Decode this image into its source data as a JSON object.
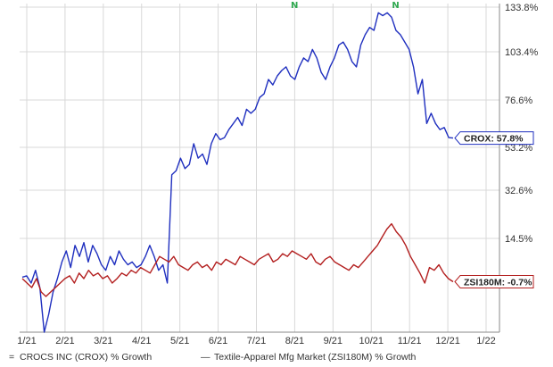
{
  "chart_data": {
    "type": "line",
    "x_ticks": [
      "1/21",
      "2/21",
      "3/21",
      "4/21",
      "5/21",
      "6/21",
      "7/21",
      "8/21",
      "9/21",
      "10/21",
      "11/21",
      "12/21",
      "1/22"
    ],
    "y_ticks": [
      "133.8%",
      "103.4%",
      "76.6%",
      "53.2%",
      "32.6%",
      "14.5%"
    ],
    "grid": true,
    "markers": [
      "N",
      "N"
    ],
    "series": [
      {
        "name": "CROCS INC (CROX) % Growth",
        "color": "#1f2fbf",
        "callout": "CROX: 57.8%",
        "legend_symbol": "=",
        "values": [
          0.5,
          1,
          -1,
          3,
          -2,
          -12,
          -8,
          -3,
          0,
          6,
          10,
          4,
          12,
          8,
          13,
          6,
          12,
          9,
          5,
          3,
          8,
          5,
          10,
          7,
          5,
          6,
          4,
          5,
          8,
          12,
          8,
          3,
          5,
          -1,
          40,
          42,
          48,
          43,
          45,
          55,
          48,
          50,
          45,
          55,
          60,
          57,
          58,
          62,
          65,
          68,
          64,
          72,
          70,
          72,
          78,
          80,
          88,
          85,
          90,
          93,
          95,
          90,
          88,
          95,
          100,
          98,
          105,
          100,
          92,
          88,
          95,
          100,
          108,
          110,
          105,
          98,
          95,
          108,
          115,
          120,
          118,
          130,
          128,
          130,
          127,
          118,
          115,
          110,
          105,
          95,
          80,
          88,
          65,
          70,
          65,
          62,
          63,
          58,
          57.8
        ]
      },
      {
        "name": "Textile-Apparel Mfg Market (ZSI180M) % Growth",
        "color": "#b31f1f",
        "callout": "ZSI180M: -0.7%",
        "legend_symbol": "—",
        "values": [
          0,
          -1,
          -2,
          0,
          -3,
          -4,
          -3,
          -2,
          -1,
          0,
          1,
          -1,
          2,
          0,
          3,
          1,
          2,
          0,
          1,
          -1,
          0,
          2,
          1,
          3,
          2,
          4,
          3,
          2,
          5,
          8,
          7,
          6,
          8,
          5,
          4,
          3,
          5,
          6,
          4,
          5,
          3,
          6,
          5,
          7,
          6,
          5,
          8,
          7,
          6,
          5,
          7,
          8,
          9,
          6,
          7,
          9,
          8,
          10,
          9,
          8,
          7,
          9,
          6,
          5,
          7,
          8,
          6,
          5,
          4,
          3,
          5,
          4,
          6,
          8,
          10,
          12,
          15,
          18,
          20,
          17,
          15,
          12,
          8,
          5,
          2,
          -1,
          4,
          3,
          5,
          2,
          0,
          -0.7
        ]
      }
    ],
    "n_markers": [
      {
        "label": "N",
        "x_index": 26
      },
      {
        "label": "N",
        "x_index": 49
      }
    ]
  },
  "legend": [
    {
      "symbol": "=",
      "label": "CROCS INC (CROX) % Growth",
      "color": "#1f2fbf"
    },
    {
      "symbol": "—",
      "label": "Textile-Apparel Mfg Market (ZSI180M) % Growth",
      "color": "#b31f1f"
    }
  ]
}
